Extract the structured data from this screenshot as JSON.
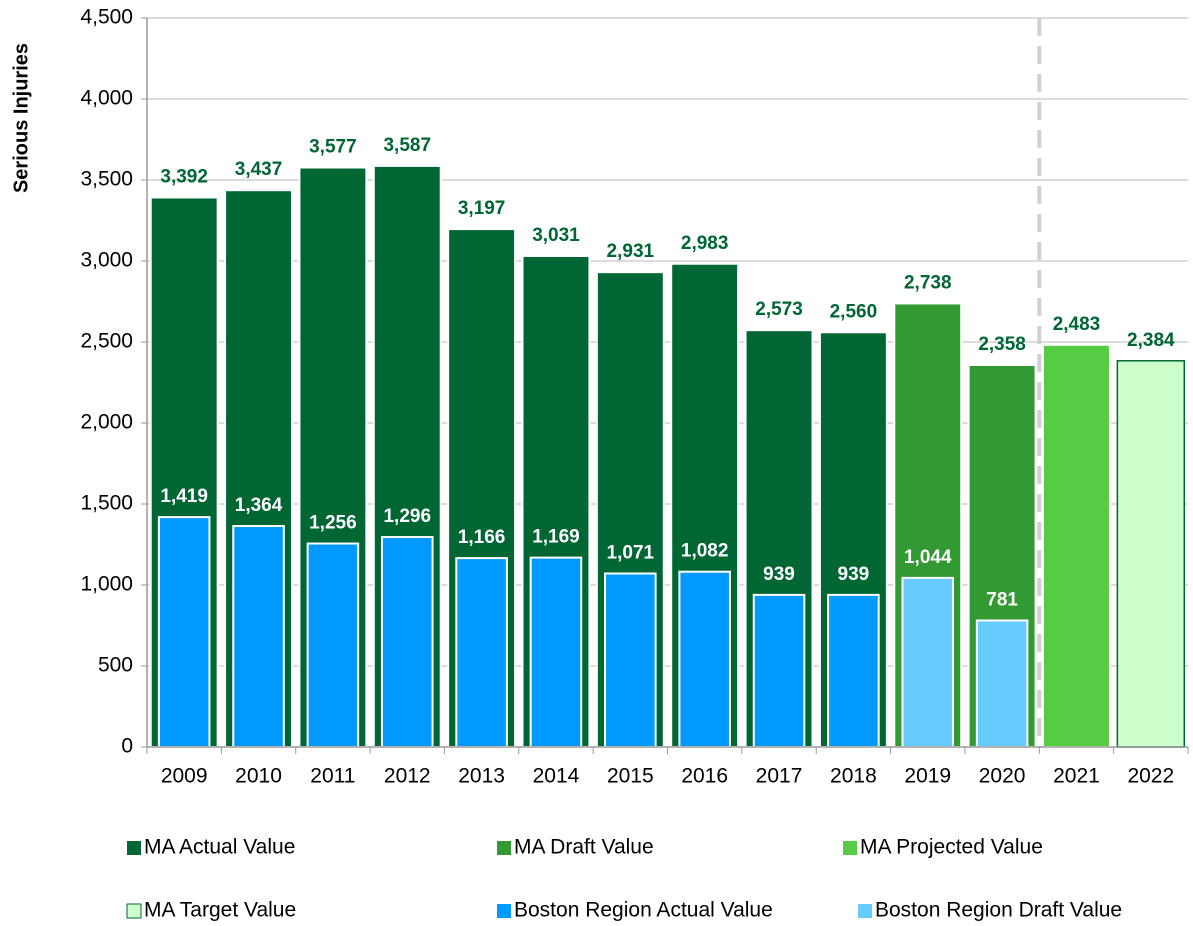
{
  "chart_data": {
    "type": "bar",
    "y_label": "Serious Injuries",
    "categories": [
      "2009",
      "2010",
      "2011",
      "2012",
      "2013",
      "2014",
      "2015",
      "2016",
      "2017",
      "2018",
      "2019",
      "2020",
      "2021",
      "2022"
    ],
    "series": [
      {
        "name": "MA Actual Value",
        "color": "#006633",
        "values": [
          3392,
          3437,
          3577,
          3587,
          3197,
          3031,
          2931,
          2983,
          2573,
          2560,
          null,
          null,
          null,
          null
        ],
        "value_labels": [
          "3,392",
          "3,437",
          "3,577",
          "3,587",
          "3,197",
          "3,031",
          "2,931",
          "2,983",
          "2,573",
          "2,560",
          null,
          null,
          null,
          null
        ]
      },
      {
        "name": "MA Draft Value",
        "color": "#339933",
        "values": [
          null,
          null,
          null,
          null,
          null,
          null,
          null,
          null,
          null,
          null,
          2738,
          2358,
          null,
          null
        ],
        "value_labels": [
          null,
          null,
          null,
          null,
          null,
          null,
          null,
          null,
          null,
          null,
          "2,738",
          "2,358",
          null,
          null
        ]
      },
      {
        "name": "MA Projected Value",
        "color": "#55cc44",
        "values": [
          null,
          null,
          null,
          null,
          null,
          null,
          null,
          null,
          null,
          null,
          null,
          null,
          2483,
          null
        ],
        "value_labels": [
          null,
          null,
          null,
          null,
          null,
          null,
          null,
          null,
          null,
          null,
          null,
          null,
          "2,483",
          null
        ]
      },
      {
        "name": "MA Target Value",
        "color": "#ccffcc",
        "values": [
          null,
          null,
          null,
          null,
          null,
          null,
          null,
          null,
          null,
          null,
          null,
          null,
          null,
          2384
        ],
        "value_labels": [
          null,
          null,
          null,
          null,
          null,
          null,
          null,
          null,
          null,
          null,
          null,
          null,
          null,
          "2,384"
        ]
      },
      {
        "name": "Boston Region Actual Value",
        "color": "#0099ff",
        "values": [
          1419,
          1364,
          1256,
          1296,
          1166,
          1169,
          1071,
          1082,
          939,
          939,
          null,
          null,
          null,
          null
        ],
        "value_labels": [
          "1,419",
          "1,364",
          "1,256",
          "1,296",
          "1,166",
          "1,169",
          "1,071",
          "1,082",
          "939",
          "939",
          null,
          null,
          null,
          null
        ]
      },
      {
        "name": "Boston Region Draft Value",
        "color": "#66ccff",
        "values": [
          null,
          null,
          null,
          null,
          null,
          null,
          null,
          null,
          null,
          null,
          1044,
          781,
          null,
          null
        ],
        "value_labels": [
          null,
          null,
          null,
          null,
          null,
          null,
          null,
          null,
          null,
          null,
          "1,044",
          "781",
          null,
          null
        ]
      }
    ],
    "ylim": [
      0,
      4500
    ],
    "yticks": [
      0,
      500,
      {
        "value": 1000,
        "label": "1,000"
      },
      {
        "value": 1500,
        "label": "1,500"
      },
      {
        "value": 2000,
        "label": "2,000"
      },
      {
        "value": 2500,
        "label": "2,500"
      },
      {
        "value": 3000,
        "label": "3,000"
      },
      {
        "value": 3500,
        "label": "3,500"
      },
      {
        "value": 4000,
        "label": "4,000"
      },
      {
        "value": 4500,
        "label": "4,500"
      }
    ],
    "grid": true,
    "legend": "bottom"
  }
}
